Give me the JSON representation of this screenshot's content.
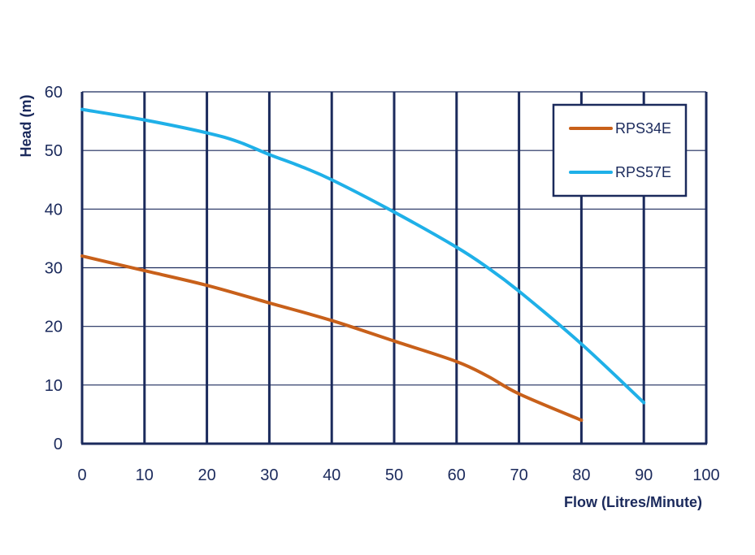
{
  "chart_data": {
    "type": "line",
    "title": "",
    "xlabel": "Flow (Litres/Minute)",
    "ylabel": "Head (m)",
    "xlim": [
      0,
      100
    ],
    "ylim": [
      0,
      60
    ],
    "xticks": [
      0,
      10,
      20,
      30,
      40,
      50,
      60,
      70,
      80,
      90,
      100
    ],
    "yticks": [
      0,
      10,
      20,
      30,
      40,
      50,
      60
    ],
    "grid": true,
    "legend_position": "top-right",
    "series": [
      {
        "name": "RPS34E",
        "color": "#c8601a",
        "x": [
          0,
          10,
          20,
          30,
          40,
          50,
          60,
          65,
          70,
          80
        ],
        "y": [
          32,
          29.5,
          27,
          24,
          21,
          17.5,
          14,
          11.5,
          8.5,
          4
        ]
      },
      {
        "name": "RPS57E",
        "color": "#1fb0e8",
        "x": [
          0,
          10,
          20,
          25,
          30,
          35,
          40,
          50,
          60,
          65,
          70,
          80,
          90
        ],
        "y": [
          57,
          55.2,
          53,
          51.5,
          49.3,
          47.3,
          45,
          39.5,
          33.5,
          30,
          26,
          17,
          7
        ]
      }
    ]
  }
}
